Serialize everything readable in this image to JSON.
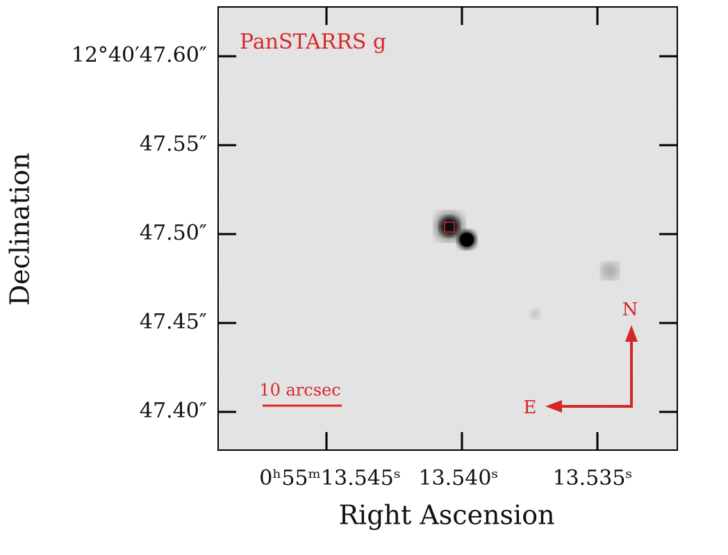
{
  "figure": {
    "title": "PanSTARRS g",
    "xlabel": "Right Ascension",
    "ylabel": "Declination",
    "xtick_labels": [
      "0ʰ55ᵐ13.545ˢ",
      "13.540ˢ",
      "13.535ˢ"
    ],
    "ytick_labels": [
      "12°40′47.60″",
      "47.55″",
      "47.50″",
      "47.45″",
      "47.40″"
    ],
    "scale_bar_label": "10 arcsec",
    "compass": {
      "north": "N",
      "east": "E"
    }
  }
}
